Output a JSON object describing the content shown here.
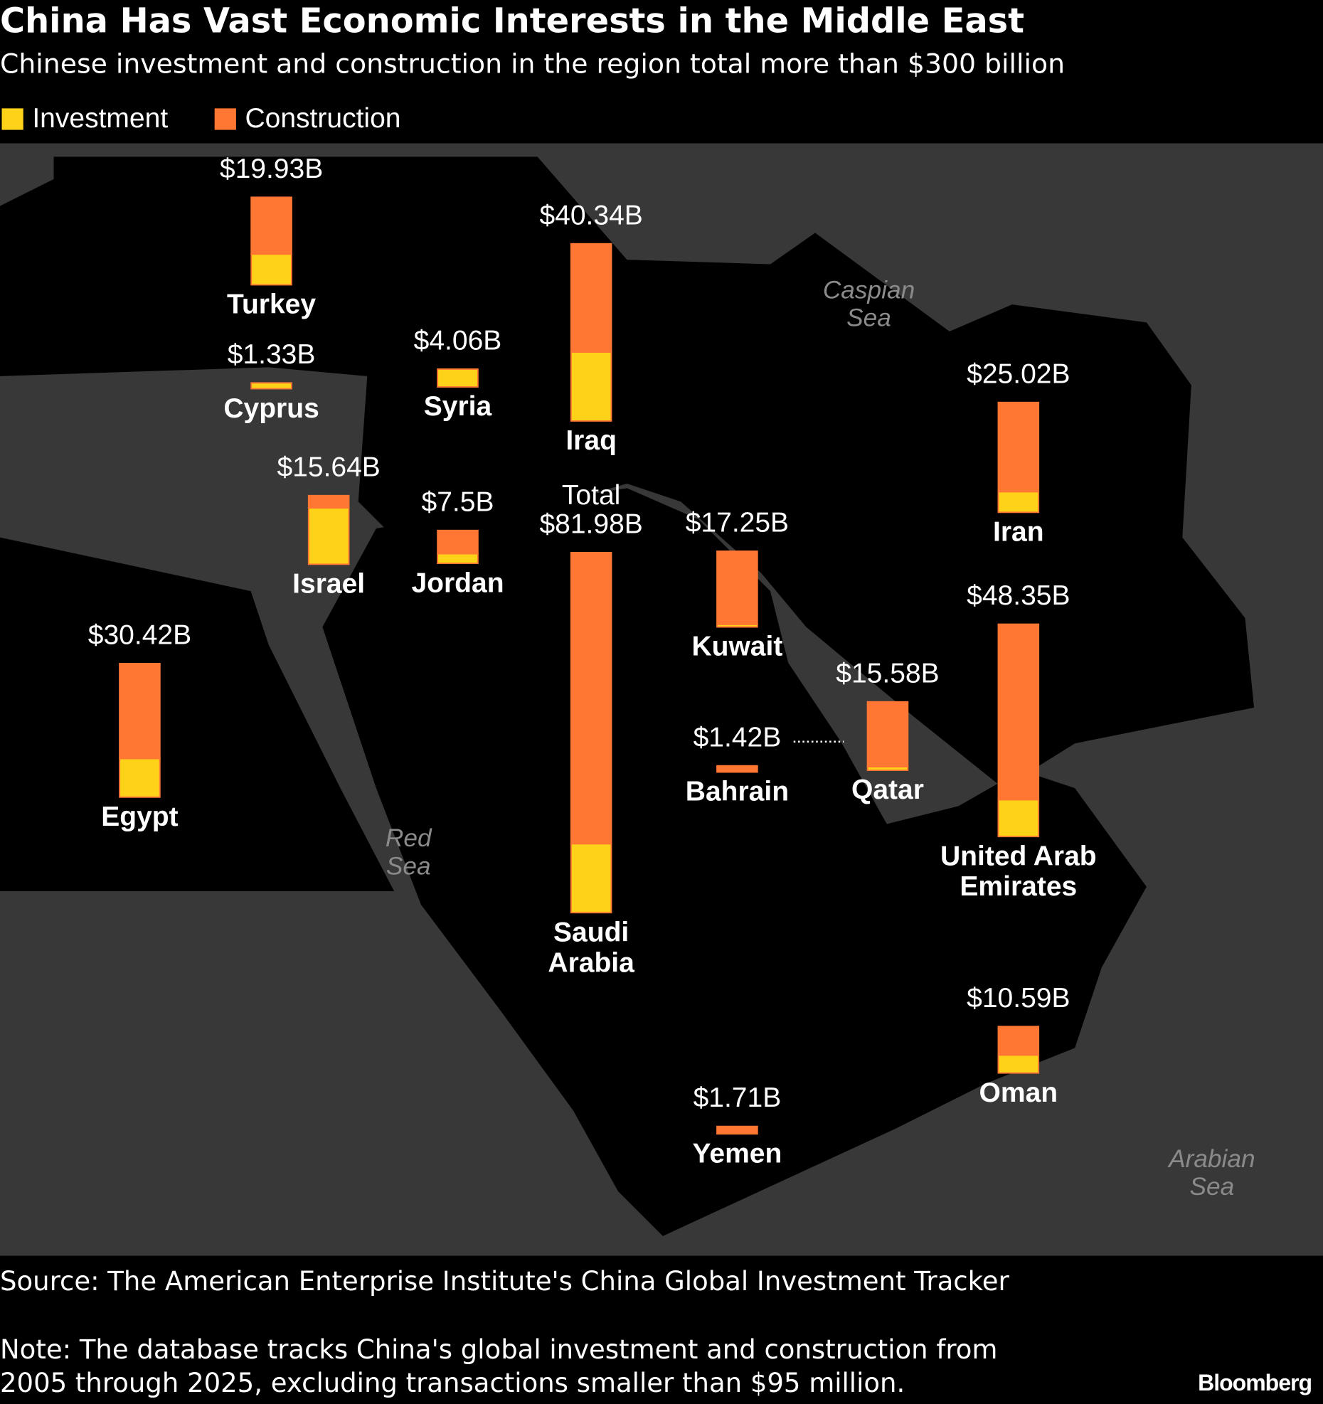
{
  "chart_data": {
    "type": "bar",
    "title": "China Has Vast Economic Interests in the Middle East",
    "subtitle": "Chinese investment and construction in the region total more than $300 billion",
    "categories": [
      "Turkey",
      "Cyprus",
      "Syria",
      "Iraq",
      "Israel",
      "Jordan",
      "Saudi Arabia",
      "Kuwait",
      "Iran",
      "United Arab Emirates",
      "Egypt",
      "Bahrain",
      "Qatar",
      "Oman",
      "Yemen"
    ],
    "values": [
      19.93,
      1.33,
      4.06,
      40.34,
      15.64,
      7.5,
      81.98,
      17.25,
      25.02,
      48.35,
      30.42,
      1.42,
      15.58,
      10.59,
      1.71
    ],
    "value_labels": [
      "$19.93B",
      "$1.33B",
      "$4.06B",
      "$40.34B",
      "$15.64B",
      "$7.5B",
      "$81.98B",
      "$17.25B",
      "$25.02B",
      "$48.35B",
      "$30.42B",
      "$1.42B",
      "$15.58B",
      "$10.59B",
      "$1.71B"
    ],
    "total_label": "Total",
    "series": [
      {
        "name": "Investment",
        "color": "#ffd21a",
        "values": [
          7.0,
          1.33,
          4.06,
          15.7,
          12.84,
          2.2,
          15.7,
          0.6,
          4.7,
          8.4,
          8.8,
          0,
          0.8,
          4.1,
          0
        ]
      },
      {
        "name": "Construction",
        "color": "#ff7733",
        "values": [
          12.93,
          0,
          0,
          24.64,
          2.8,
          5.3,
          66.28,
          16.65,
          20.32,
          39.95,
          21.62,
          1.42,
          14.78,
          6.49,
          1.71
        ]
      }
    ],
    "annotations": [
      "Caspian Sea",
      "Red Sea",
      "Arabian Sea"
    ],
    "source": "Source: The American Enterprise Institute's China Global Investment Tracker",
    "note": "Note: The database tracks China's global investment and construction from 2005 through 2025, excluding transactions smaller than $95 million.",
    "brand": "Bloomberg"
  }
}
